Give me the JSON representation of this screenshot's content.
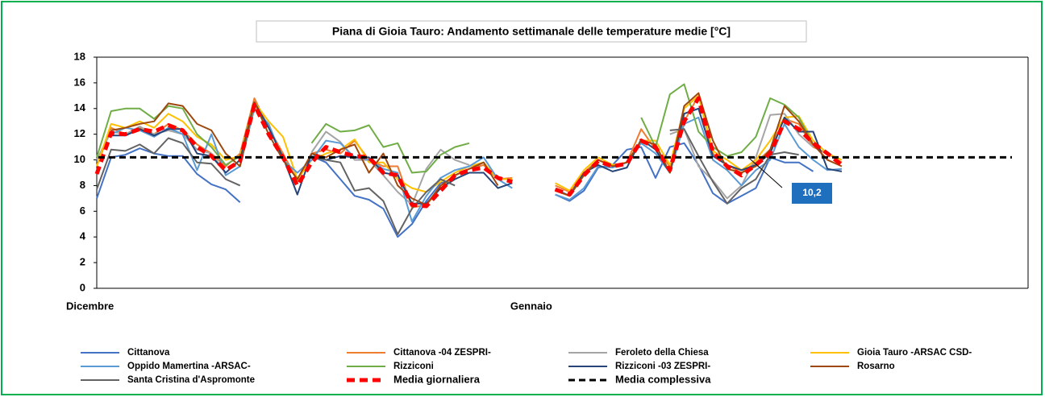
{
  "chart_data": {
    "type": "line",
    "title": "Piana di Gioia Tauro: Andamento settimanale delle temperature medie [°C]",
    "categories": [
      "Dicembre",
      null,
      null,
      null,
      null,
      null,
      null,
      null,
      null,
      null,
      null,
      null,
      null,
      null,
      null,
      null,
      null,
      null,
      null,
      null,
      null,
      null,
      null,
      null,
      null,
      null,
      null,
      null,
      null,
      null,
      null,
      "Gennaio",
      null,
      null,
      null,
      null,
      null,
      null,
      null,
      null,
      null,
      null,
      null,
      null,
      null,
      null,
      null,
      null,
      null,
      null,
      null,
      null,
      null
    ],
    "ylim": [
      0,
      18
    ],
    "yticks": [
      0,
      2,
      4,
      6,
      8,
      10,
      12,
      14,
      16,
      18
    ],
    "series": [
      {
        "name": "Cittanova",
        "color": "#4472c4",
        "values": [
          7.0,
          10.2,
          10.4,
          10.9,
          10.5,
          10.3,
          10.3,
          8.9,
          8.1,
          7.7,
          6.7,
          null,
          null,
          null,
          null,
          10.3,
          9.8,
          8.5,
          7.2,
          6.9,
          6.2,
          4.0,
          5.0,
          6.8,
          8.2,
          8.5,
          null,
          null,
          null,
          null,
          null,
          null,
          7.3,
          6.8,
          7.6,
          9.4,
          9.6,
          10.8,
          11.0,
          8.6,
          11.0,
          11.3,
          9.6,
          7.4,
          6.6,
          7.2,
          7.8,
          10.2,
          9.8,
          9.8,
          9.1,
          null,
          null
        ]
      },
      {
        "name": "Cittanova -04 ZESPRI-",
        "color": "#ed7d31",
        "values": [
          9.5,
          12.5,
          12.0,
          12.5,
          12.0,
          12.8,
          12.3,
          11.2,
          10.5,
          9.5,
          10.5,
          14.8,
          12.5,
          10.5,
          8.4,
          10.5,
          10.8,
          10.5,
          11.5,
          10.0,
          9.5,
          9.5,
          6.3,
          6.5,
          7.8,
          8.8,
          9.3,
          9.6,
          8.5,
          8.6,
          null,
          null,
          8.0,
          7.5,
          9.0,
          10.0,
          9.5,
          9.8,
          12.4,
          10.8,
          9.5,
          13.0,
          15.0,
          10.5,
          9.6,
          9.0,
          9.8,
          10.8,
          13.2,
          12.8,
          11.0,
          10.5,
          9.8
        ]
      },
      {
        "name": "Feroleto della Chiesa",
        "color": "#a5a5a5",
        "values": [
          10.0,
          12.2,
          12.0,
          12.6,
          12.0,
          12.3,
          12.0,
          10.8,
          10.5,
          9.0,
          null,
          null,
          null,
          null,
          null,
          10.6,
          12.2,
          11.4,
          10.0,
          10.0,
          8.8,
          7.5,
          6.5,
          9.3,
          10.8,
          10.0,
          9.6,
          null,
          null,
          null,
          null,
          null,
          null,
          null,
          null,
          null,
          null,
          null,
          null,
          null,
          12.0,
          12.4,
          9.5,
          8.4,
          7.0,
          8.0,
          10.2,
          13.5,
          13.6,
          12.0,
          11.0,
          null,
          null
        ]
      },
      {
        "name": "Gioia Tauro -ARSAC CSD-",
        "color": "#ffc000",
        "values": [
          9.5,
          12.8,
          12.5,
          13.0,
          12.5,
          13.6,
          13.0,
          11.8,
          11.2,
          10.0,
          10.3,
          14.5,
          13.0,
          11.8,
          8.5,
          10.0,
          10.5,
          10.8,
          11.6,
          9.8,
          9.8,
          8.5,
          7.8,
          7.5,
          8.3,
          9.0,
          9.5,
          9.8,
          8.5,
          8.5,
          null,
          null,
          8.2,
          7.6,
          9.2,
          10.2,
          9.6,
          9.8,
          11.5,
          11.5,
          9.6,
          14.0,
          15.0,
          10.7,
          10.0,
          9.2,
          10.0,
          11.5,
          13.3,
          13.4,
          11.5,
          10.5,
          10.0
        ]
      },
      {
        "name": "Oppido Mamertina -ARSAC-",
        "color": "#5b9bd5",
        "values": [
          null,
          12.0,
          12.5,
          12.3,
          11.8,
          12.5,
          12.0,
          9.2,
          12.0,
          8.8,
          9.5,
          14.0,
          12.8,
          10.0,
          9.0,
          10.0,
          11.5,
          11.3,
          10.2,
          10.0,
          9.3,
          9.0,
          5.2,
          7.2,
          8.6,
          9.2,
          9.5,
          10.2,
          8.5,
          7.8,
          null,
          null,
          7.3,
          6.9,
          7.8,
          9.5,
          9.4,
          9.8,
          11.3,
          10.5,
          9.0,
          12.8,
          13.3,
          10.0,
          9.2,
          8.0,
          9.2,
          10.0,
          12.8,
          11.0,
          10.0,
          9.2,
          9.3
        ]
      },
      {
        "name": "Rizziconi",
        "color": "#70ad47",
        "values": [
          10.2,
          13.8,
          14.0,
          14.0,
          13.2,
          14.2,
          14.0,
          12.0,
          11.0,
          9.6,
          10.3,
          null,
          null,
          null,
          null,
          11.3,
          12.8,
          12.2,
          12.3,
          12.7,
          11.0,
          11.3,
          9.0,
          9.1,
          10.4,
          11.0,
          11.3,
          null,
          null,
          null,
          null,
          null,
          null,
          null,
          null,
          null,
          null,
          null,
          13.3,
          11.0,
          15.1,
          15.9,
          12.2,
          11.0,
          10.3,
          10.6,
          11.8,
          14.8,
          14.3,
          13.3,
          11.2,
          null,
          null
        ]
      },
      {
        "name": "Rizziconi -03 ZESPRI-",
        "color": "#264478",
        "values": [
          null,
          11.9,
          11.9,
          12.4,
          11.9,
          12.4,
          12.4,
          10.5,
          10.3,
          9.0,
          10.0,
          14.5,
          12.5,
          10.2,
          7.3,
          10.5,
          10.0,
          10.3,
          10.2,
          10.2,
          9.0,
          8.8,
          6.6,
          6.6,
          7.8,
          8.5,
          9.0,
          9.0,
          7.8,
          8.2,
          null,
          null,
          7.7,
          7.2,
          9.0,
          9.6,
          9.1,
          9.4,
          11.6,
          10.8,
          9.0,
          13.6,
          14.0,
          10.3,
          9.6,
          9.2,
          9.6,
          10.5,
          13.3,
          12.2,
          12.2,
          9.3,
          9.1
        ]
      },
      {
        "name": "Rosarno",
        "color": "#9e480e",
        "values": [
          null,
          12.3,
          12.5,
          12.8,
          13.0,
          14.4,
          14.2,
          12.8,
          12.3,
          10.5,
          9.5,
          14.5,
          12.0,
          10.0,
          8.5,
          10.5,
          10.2,
          10.8,
          11.2,
          9.0,
          10.5,
          8.0,
          7.0,
          6.5,
          8.0,
          8.8,
          9.3,
          9.8,
          8.0,
          null,
          null,
          null,
          7.6,
          7.2,
          8.8,
          10.0,
          9.5,
          9.8,
          11.5,
          11.2,
          9.0,
          14.2,
          15.2,
          11.5,
          9.3,
          9.0,
          9.5,
          10.8,
          14.2,
          13.0,
          11.2,
          10.0,
          9.5
        ]
      },
      {
        "name": "Santa Cristina d'Aspromonte",
        "color": "#636363",
        "values": [
          7.7,
          10.8,
          10.7,
          11.2,
          10.5,
          11.7,
          11.3,
          9.8,
          9.7,
          8.5,
          8.0,
          null,
          null,
          null,
          null,
          10.2,
          10.0,
          9.8,
          7.6,
          7.8,
          6.8,
          4.2,
          6.2,
          7.5,
          8.5,
          8.0,
          null,
          null,
          null,
          null,
          null,
          null,
          null,
          null,
          null,
          null,
          null,
          null,
          null,
          null,
          12.3,
          12.4,
          10.3,
          8.3,
          6.6,
          7.8,
          8.5,
          10.4,
          10.6,
          10.4,
          null,
          null,
          null
        ]
      },
      {
        "name": "Media giornaliera",
        "color": "#ff0000",
        "dashed": true,
        "values": [
          8.9,
          12.1,
          12.0,
          12.4,
          12.2,
          12.7,
          12.3,
          11.0,
          10.3,
          9.2,
          9.9,
          14.3,
          12.0,
          10.2,
          8.0,
          9.8,
          11.0,
          10.6,
          10.3,
          10.2,
          9.0,
          8.8,
          6.5,
          6.4,
          7.6,
          8.8,
          9.2,
          9.4,
          8.6,
          8.3,
          null,
          null,
          7.7,
          7.3,
          8.8,
          9.9,
          9.5,
          9.7,
          11.5,
          11.0,
          9.2,
          13.0,
          14.8,
          10.6,
          9.5,
          8.8,
          9.6,
          10.5,
          13.0,
          12.4,
          11.3,
          10.5,
          9.6
        ]
      }
    ],
    "reference_line": {
      "name": "Media complessiva",
      "color": "#000000",
      "value": 10.2,
      "value_label": "10,2",
      "label_color": "#1f6fbf"
    }
  }
}
